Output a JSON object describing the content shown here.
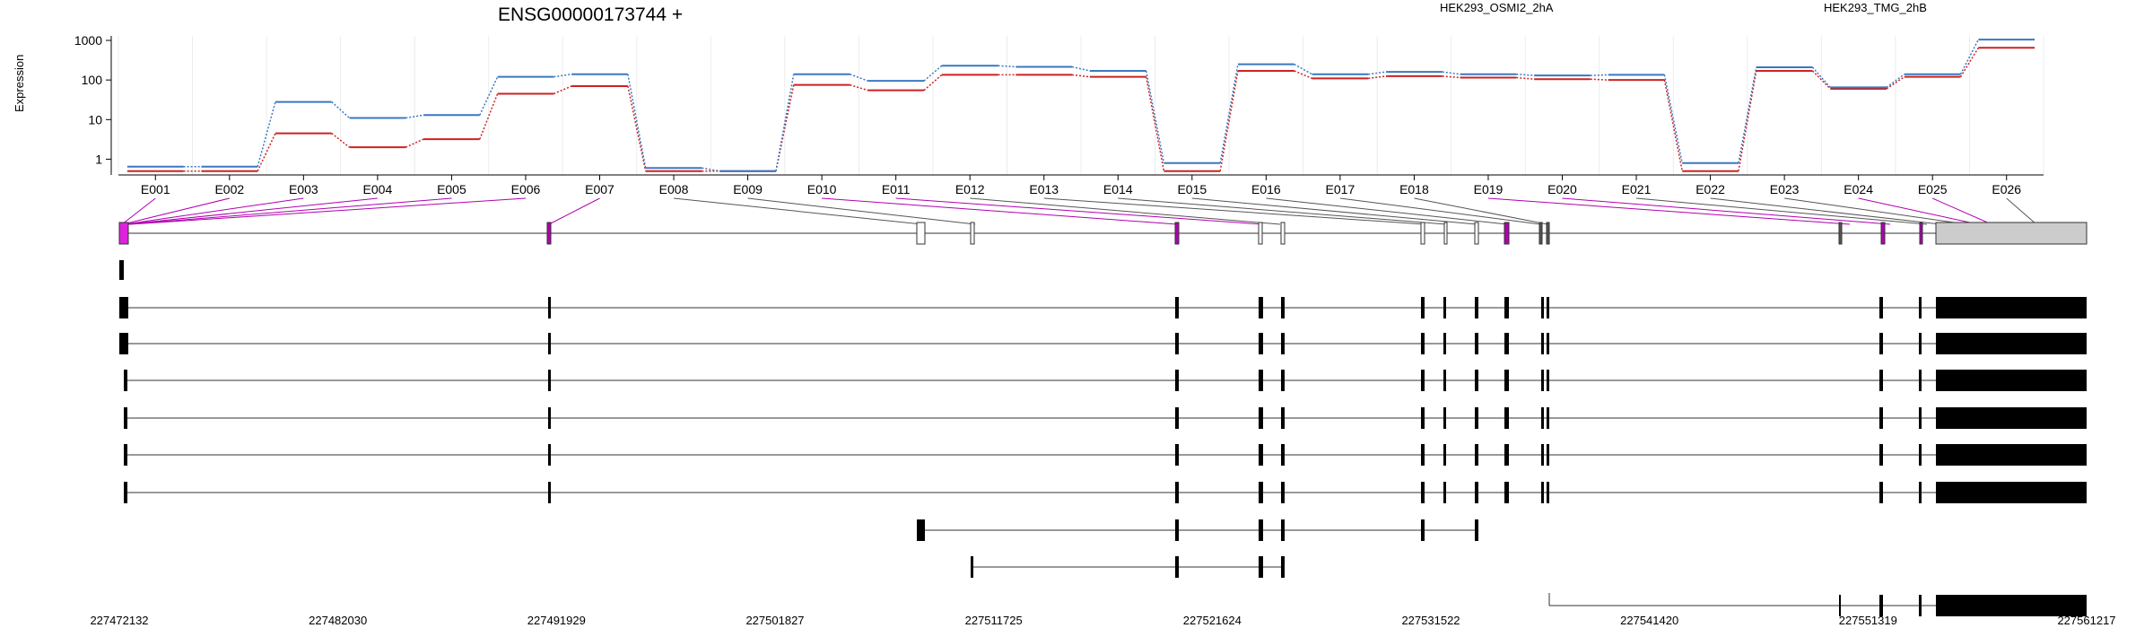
{
  "chart_data": {
    "type": "line",
    "title": "ENSG00000173744 +",
    "ylabel": "Expression",
    "y_scale": "log",
    "y_ticks": [
      "1",
      "10",
      "100",
      "1000"
    ],
    "ylim": [
      0.4,
      1300
    ],
    "categories": [
      "E001",
      "E002",
      "E003",
      "E004",
      "E005",
      "E006",
      "E007",
      "E008",
      "E009",
      "E010",
      "E011",
      "E012",
      "E013",
      "E014",
      "E015",
      "E016",
      "E017",
      "E018",
      "E019",
      "E020",
      "E021",
      "E022",
      "E023",
      "E024",
      "E025",
      "E026"
    ],
    "series": [
      {
        "name": "HEK293_OSMI2_2hA",
        "color": "#cc2222",
        "values": [
          0.5,
          0.5,
          4.5,
          2.0,
          3.2,
          45,
          70,
          0.5,
          0.5,
          75,
          55,
          135,
          135,
          120,
          0.5,
          170,
          110,
          125,
          115,
          105,
          100,
          0.5,
          170,
          60,
          120,
          650
        ]
      },
      {
        "name": "HEK293_TMG_2hB",
        "color": "#3a78c0",
        "values": [
          0.65,
          0.65,
          28,
          11,
          13,
          120,
          140,
          0.6,
          0.5,
          140,
          95,
          230,
          215,
          170,
          0.8,
          250,
          140,
          160,
          140,
          130,
          135,
          0.8,
          210,
          65,
          140,
          1050
        ]
      }
    ],
    "genomic_axis_ticks": [
      "227472132",
      "227482030",
      "227491929",
      "227501827",
      "227511725",
      "227521624",
      "227531522",
      "227541420",
      "227551319",
      "227561217"
    ],
    "transcripts": 11
  }
}
